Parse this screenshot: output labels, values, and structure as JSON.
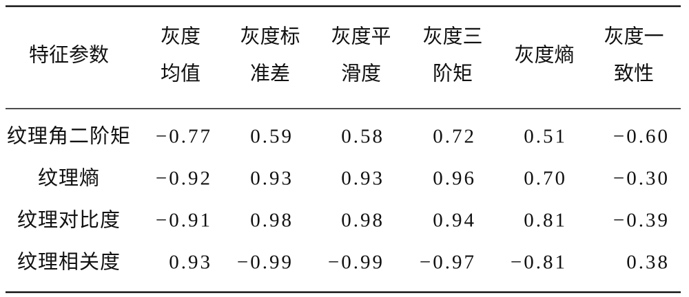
{
  "table": {
    "header": [
      "特征参数",
      [
        "灰度",
        "均值"
      ],
      [
        "灰度标",
        "准差"
      ],
      [
        "灰度平",
        "滑度"
      ],
      [
        "灰度三",
        "阶矩"
      ],
      "灰度熵",
      [
        "灰度一",
        "致性"
      ]
    ],
    "rows": [
      [
        "纹理角二阶矩",
        "−0.77",
        "0.59",
        "0.58",
        "0.72",
        "0.51",
        "−0.60"
      ],
      [
        "纹理熵",
        "−0.92",
        "0.93",
        "0.93",
        "0.96",
        "0.70",
        "−0.30"
      ],
      [
        "纹理对比度",
        "−0.91",
        "0.98",
        "0.98",
        "0.94",
        "0.81",
        "−0.39"
      ],
      [
        "纹理相关度",
        "0.93",
        "−0.99",
        "−0.99",
        "−0.97",
        "−0.81",
        "0.38"
      ]
    ]
  }
}
